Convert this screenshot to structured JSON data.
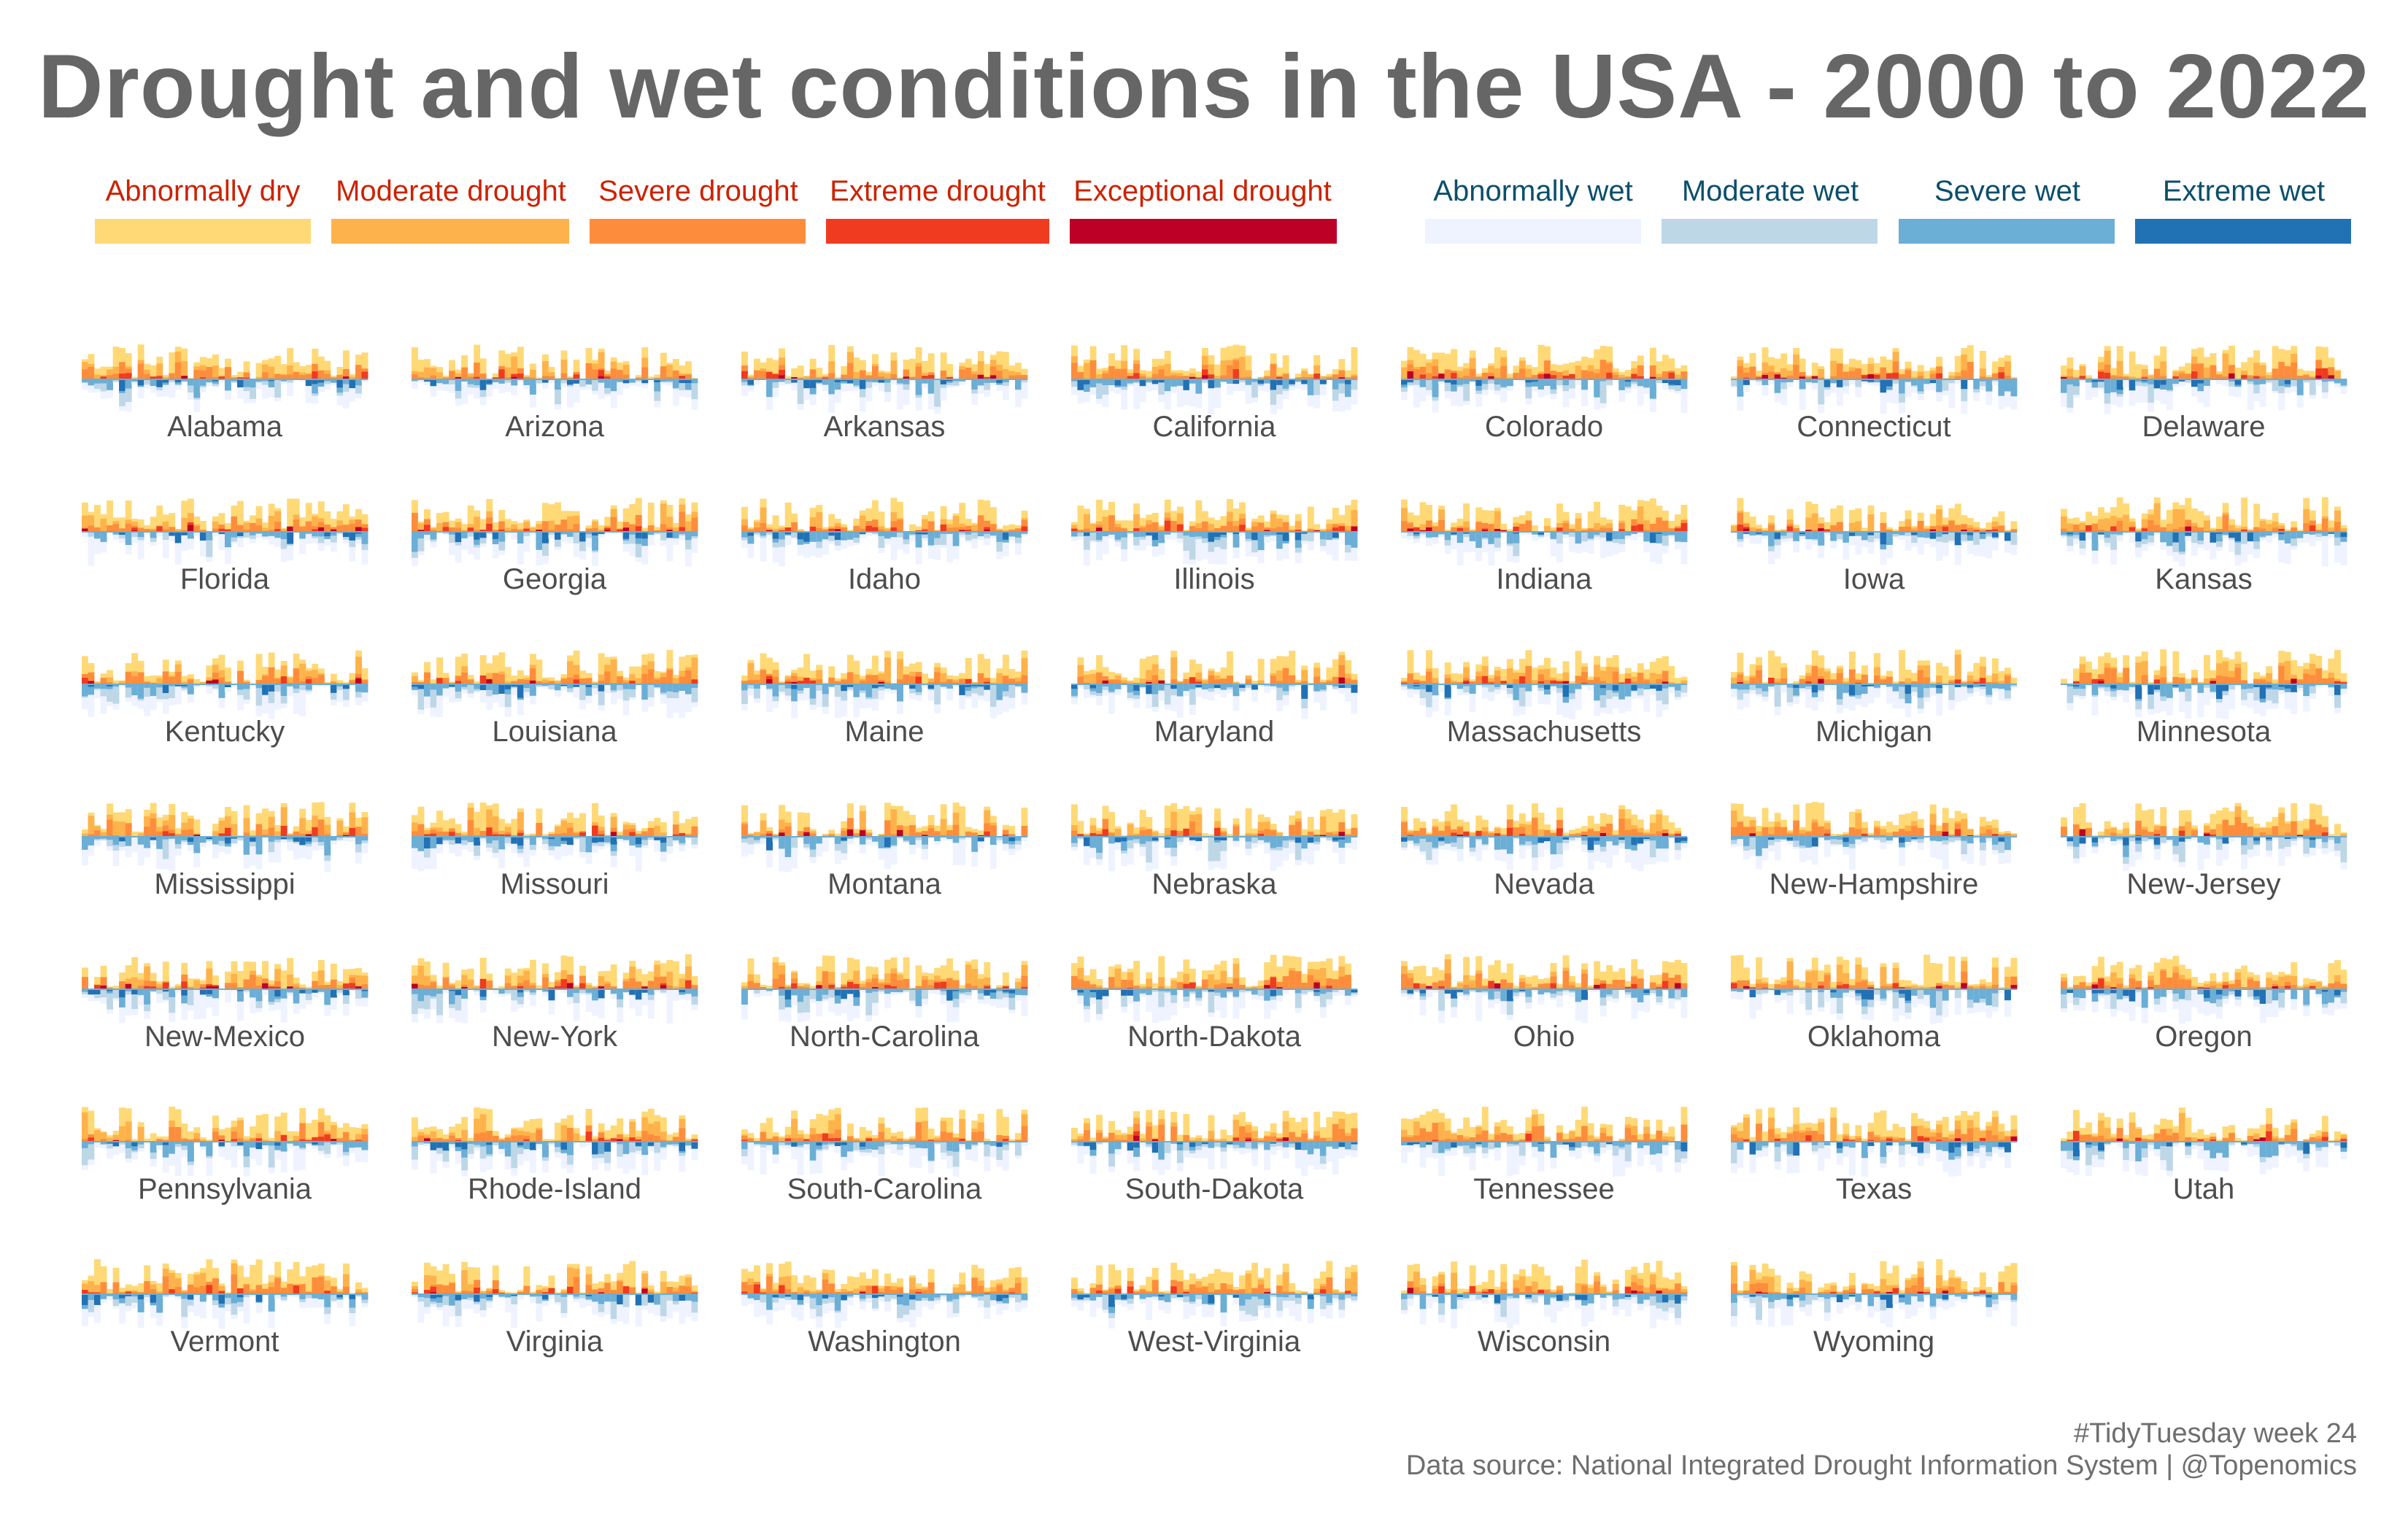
{
  "title": "Drought and wet conditions in the USA - 2000 to 2022",
  "legend": {
    "drought": [
      {
        "label": "Abnormally dry",
        "color": "#FED976"
      },
      {
        "label": "Moderate drought",
        "color": "#FEB24C"
      },
      {
        "label": "Severe drought",
        "color": "#FD8D3C"
      },
      {
        "label": "Extreme drought",
        "color": "#F03B20"
      },
      {
        "label": "Exceptional drought",
        "color": "#BD0026"
      }
    ],
    "wet": [
      {
        "label": "Abnormally wet",
        "color": "#EFF3FF"
      },
      {
        "label": "Moderate wet",
        "color": "#BDD7E7"
      },
      {
        "label": "Severe wet",
        "color": "#6BAED6"
      },
      {
        "label": "Extreme wet",
        "color": "#2171B5"
      }
    ],
    "drought_text_color": "#CC2200",
    "wet_text_color": "#0B4F6C"
  },
  "caption": {
    "line1": "#TidyTuesday week 24",
    "line2": "Data source: National Integrated Drought Information System | @Topenomics"
  },
  "chart_data": {
    "type": "bar",
    "layout": "small multiples, diverging stacked bars (drought above baseline, wet below)",
    "x": "year (2000 to 2022)",
    "years": [
      2000,
      2022
    ],
    "states": [
      "Alabama",
      "Arizona",
      "Arkansas",
      "California",
      "Colorado",
      "Connecticut",
      "Delaware",
      "Florida",
      "Georgia",
      "Idaho",
      "Illinois",
      "Indiana",
      "Iowa",
      "Kansas",
      "Kentucky",
      "Louisiana",
      "Maine",
      "Maryland",
      "Massachusetts",
      "Michigan",
      "Minnesota",
      "Mississippi",
      "Missouri",
      "Montana",
      "Nebraska",
      "Nevada",
      "New-Hampshire",
      "New-Jersey",
      "New-Mexico",
      "New-York",
      "North-Carolina",
      "North-Dakota",
      "Ohio",
      "Oklahoma",
      "Oregon",
      "Pennsylvania",
      "Rhode-Island",
      "South-Carolina",
      "South-Dakota",
      "Tennessee",
      "Texas",
      "Utah",
      "Vermont",
      "Virginia",
      "Washington",
      "West-Virginia",
      "Wisconsin",
      "Wyoming"
    ],
    "drought_categories": [
      "Abnormally dry",
      "Moderate drought",
      "Severe drought",
      "Extreme drought",
      "Exceptional drought"
    ],
    "wet_categories": [
      "Abnormally wet",
      "Moderate wet",
      "Severe wet",
      "Extreme wet"
    ]
  }
}
